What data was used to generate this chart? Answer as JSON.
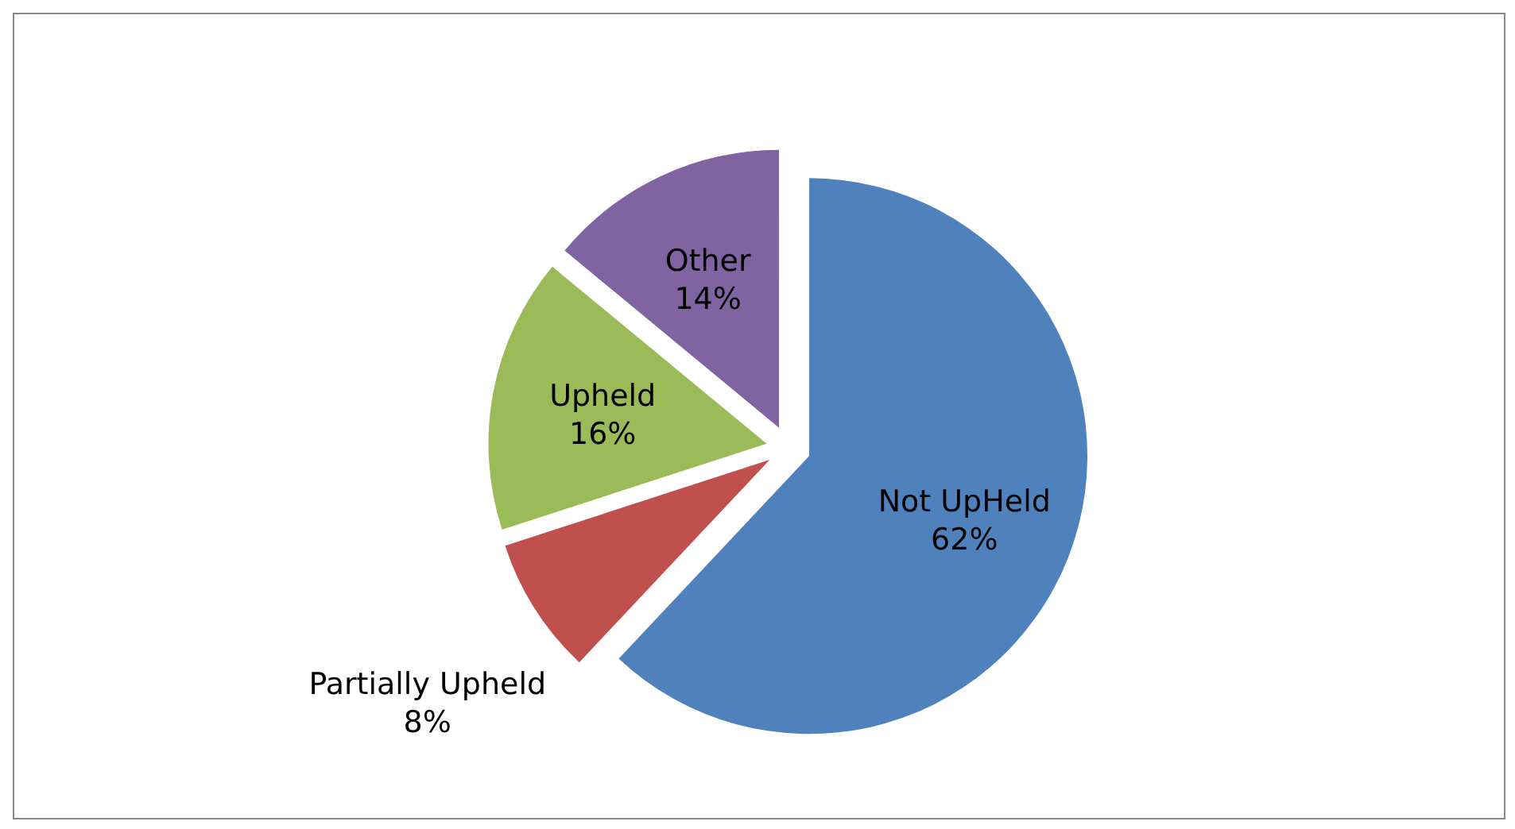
{
  "chart_data": {
    "type": "pie",
    "categories": [
      "Not UpHeld",
      "Partially Upheld",
      "Upheld",
      "Other"
    ],
    "values": [
      62,
      8,
      16,
      14
    ],
    "colors": [
      "#4f81bd",
      "#c0504d",
      "#9bbb59",
      "#8064a2"
    ],
    "value_labels": [
      "62%",
      "8%",
      "16%",
      "14%"
    ],
    "legend": false
  }
}
